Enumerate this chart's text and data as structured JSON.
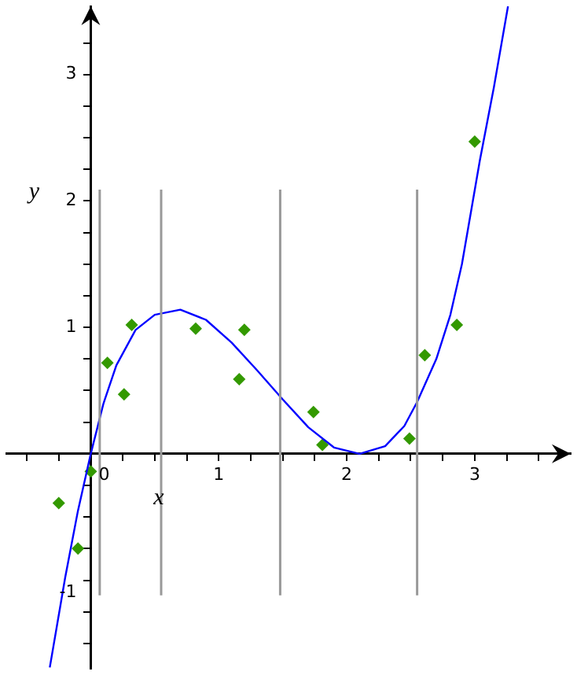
{
  "chart_data": {
    "type": "scatter",
    "xlabel": "x",
    "ylabel": "y",
    "xlim": [
      -0.66,
      3.75
    ],
    "ylim": [
      -1.7,
      3.54
    ],
    "xticks": [
      {
        "value": -0.5,
        "label": null
      },
      {
        "value": -0.25,
        "label": null
      },
      0,
      {
        "value": 0.25,
        "label": null
      },
      {
        "value": 0.5,
        "label": null
      },
      {
        "value": 0.75,
        "label": null
      },
      1,
      {
        "value": 1.25,
        "label": null
      },
      {
        "value": 1.5,
        "label": null
      },
      {
        "value": 1.75,
        "label": null
      },
      2,
      {
        "value": 2.25,
        "label": null
      },
      {
        "value": 2.5,
        "label": null
      },
      {
        "value": 2.75,
        "label": null
      },
      3,
      {
        "value": 3.25,
        "label": null
      },
      {
        "value": 3.5,
        "label": null
      }
    ],
    "yticks": [
      {
        "value": -1.5,
        "label": null
      },
      {
        "value": -1.25,
        "label": null
      },
      -1,
      {
        "value": -0.75,
        "label": null
      },
      {
        "value": -0.5,
        "label": null
      },
      {
        "value": -0.25,
        "label": null
      },
      {
        "value": 0,
        "label": null
      },
      {
        "value": 0.25,
        "label": null
      },
      {
        "value": 0.5,
        "label": null
      },
      {
        "value": 0.75,
        "label": null
      },
      1,
      {
        "value": 1.25,
        "label": null
      },
      {
        "value": 1.5,
        "label": null
      },
      {
        "value": 1.75,
        "label": null
      },
      2,
      {
        "value": 2.25,
        "label": null
      },
      {
        "value": 2.5,
        "label": null
      },
      {
        "value": 2.75,
        "label": null
      },
      3,
      {
        "value": 3.25,
        "label": null
      }
    ],
    "grid": false,
    "legend": false,
    "marker": "diamond",
    "series": [
      {
        "type": "line",
        "color": "#999999",
        "marker": "none",
        "x": [
          0.07,
          0.07
        ],
        "values": [
          -1.12,
          2.09
        ]
      },
      {
        "type": "line",
        "color": "#999999",
        "marker": "none",
        "x": [
          0.55,
          0.55
        ],
        "values": [
          -1.12,
          2.09
        ]
      },
      {
        "type": "line",
        "color": "#999999",
        "marker": "none",
        "x": [
          1.48,
          1.48
        ],
        "values": [
          -1.12,
          2.09
        ]
      },
      {
        "type": "line",
        "color": "#999999",
        "marker": "none",
        "x": [
          2.55,
          2.55
        ],
        "values": [
          -1.12,
          2.09
        ]
      },
      {
        "type": "line",
        "color": "#0000ff",
        "marker": "none",
        "x": [
          -0.32,
          -0.2,
          -0.1,
          0,
          0.1,
          0.2,
          0.35,
          0.5,
          0.7,
          0.9,
          1.1,
          1.3,
          1.5,
          1.7,
          1.9,
          2.1,
          2.3,
          2.45,
          2.55,
          2.7,
          2.81,
          2.9,
          3.04,
          3.15,
          3.26
        ],
        "values": [
          -1.69,
          -0.98,
          -0.45,
          0,
          0.4,
          0.7,
          0.98,
          1.1,
          1.14,
          1.06,
          0.88,
          0.66,
          0.43,
          0.21,
          0.05,
          0,
          0.06,
          0.22,
          0.41,
          0.75,
          1.1,
          1.5,
          2.32,
          2.9,
          3.54
        ]
      },
      {
        "type": "scatter",
        "color": "#339900",
        "x": [
          -0.25,
          -0.1,
          0.0,
          0.13,
          0.26,
          0.32,
          0.82,
          1.16,
          1.2,
          1.74,
          1.81,
          2.49,
          2.61,
          2.86,
          3.0
        ],
        "values": [
          -0.39,
          -0.75,
          -0.14,
          0.72,
          0.47,
          1.02,
          0.99,
          0.59,
          0.98,
          0.33,
          0.07,
          0.12,
          0.78,
          1.02,
          2.47
        ]
      }
    ]
  }
}
